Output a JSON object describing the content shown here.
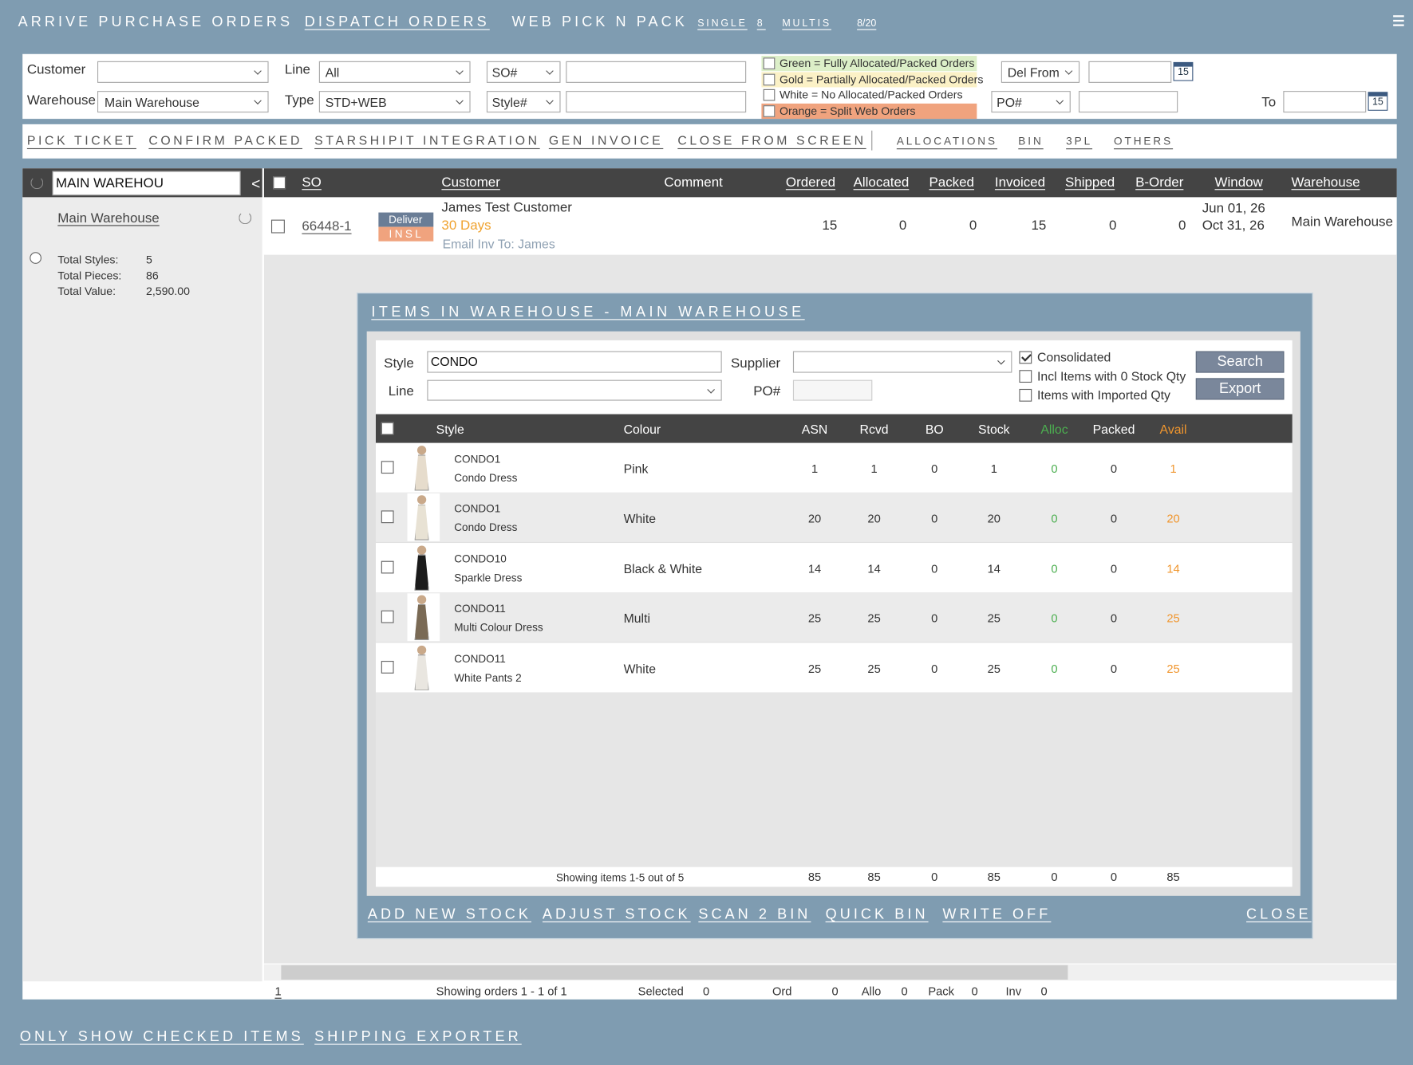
{
  "top_nav": {
    "links": [
      "ARRIVE PURCHASE ORDERS",
      "DISPATCH ORDERS",
      "WEB PICK N PACK"
    ],
    "single": {
      "label": "SINGLE",
      "count": 8
    },
    "multis": {
      "label": "MULTIS",
      "count": "8/20"
    }
  },
  "filters": {
    "customer_label": "Customer",
    "warehouse_label": "Warehouse",
    "warehouse_value": "Main Warehouse",
    "line_label": "Line",
    "line_value": "All",
    "type_label": "Type",
    "type_value": "STD+WEB",
    "so_select": "SO#",
    "style_select": "Style#",
    "del_from_select": "Del From",
    "po_select": "PO#",
    "to_label": "To",
    "calendar_day": [
      "15",
      "15"
    ]
  },
  "legend": [
    {
      "text": "Green = Fully Allocated/Packed Orders",
      "color": "#dcefc8"
    },
    {
      "text": "Gold = Partially Allocated/Packed Orders",
      "color": "#fbf1c6"
    },
    {
      "text": "White = No Allocated/Packed Orders",
      "color": "#ffffff"
    },
    {
      "text": "Orange = Split Web Orders",
      "color": "#f0a37e"
    }
  ],
  "actions": [
    "PICK TICKET",
    "CONFIRM PACKED",
    "STARSHIPIT INTEGRATION",
    "GEN INVOICE",
    "CLOSE FROM SCREEN"
  ],
  "secondary_actions": [
    "ALLOCATIONS",
    "BIN",
    "3PL",
    "OTHERS"
  ],
  "sidebar": {
    "search": "MAIN WAREHOU",
    "collapse": "<",
    "warehouse": "Main Warehouse",
    "stats": [
      {
        "label": "Total Styles:",
        "value": "5"
      },
      {
        "label": "Total Pieces:",
        "value": "86"
      },
      {
        "label": "Total Value:",
        "value": "2,590.00"
      }
    ]
  },
  "orders": {
    "columns": [
      "SO",
      "Customer",
      "Comment",
      "Ordered",
      "Allocated",
      "Packed",
      "Invoiced",
      "Shipped",
      "B-Order",
      "Window",
      "Warehouse"
    ],
    "rows": [
      {
        "so": "66448-1",
        "badge_top": "Deliver",
        "badge_bottom": "INSL",
        "customer": "James Test Customer",
        "terms": "30 Days",
        "email": "Email Inv To: James",
        "ordered": 15,
        "allocated": 0,
        "packed": 0,
        "invoiced": 15,
        "shipped": 0,
        "b_order": 0,
        "window": [
          "Jun 01, 26",
          "Oct 31, 26"
        ],
        "warehouse": "Main Warehouse"
      }
    ],
    "footer": {
      "page": "1",
      "showing": "Showing orders 1 - 1 of 1",
      "selected_label": "Selected",
      "selected": 0,
      "ord_label": "Ord",
      "ord": 0,
      "allo_label": "Allo",
      "allo": 0,
      "pack_label": "Pack",
      "pack": 0,
      "inv_label": "Inv",
      "inv": 0
    }
  },
  "modal": {
    "title": "ITEMS IN WAREHOUSE - MAIN WAREHOUSE",
    "style_label": "Style",
    "style_value": "CONDO",
    "line_label": "Line",
    "supplier_label": "Supplier",
    "po_label": "PO#",
    "options": [
      {
        "label": "Consolidated",
        "checked": true
      },
      {
        "label": "Incl Items with 0 Stock Qty",
        "checked": false
      },
      {
        "label": "Items with Imported Qty",
        "checked": false
      }
    ],
    "buttons": [
      "Search",
      "Export"
    ],
    "columns": [
      "Style",
      "Colour",
      "ASN",
      "Rcvd",
      "BO",
      "Stock",
      "Alloc",
      "Packed",
      "Avail"
    ],
    "items": [
      {
        "code": "CONDO1",
        "name": "Condo Dress",
        "colour": "Pink",
        "values": [
          1,
          1,
          0,
          1,
          0,
          0,
          1
        ]
      },
      {
        "code": "CONDO1",
        "name": "Condo Dress",
        "colour": "White",
        "values": [
          20,
          20,
          0,
          20,
          0,
          0,
          20
        ]
      },
      {
        "code": "CONDO10",
        "name": "Sparkle Dress",
        "colour": "Black & White",
        "values": [
          14,
          14,
          0,
          14,
          0,
          0,
          14
        ]
      },
      {
        "code": "CONDO11",
        "name": "Multi Colour Dress",
        "colour": "Multi",
        "values": [
          25,
          25,
          0,
          25,
          0,
          0,
          25
        ]
      },
      {
        "code": "CONDO11",
        "name": "White Pants 2",
        "colour": "White",
        "values": [
          25,
          25,
          0,
          25,
          0,
          0,
          25
        ]
      }
    ],
    "summary": "Showing items 1-5 out of 5",
    "totals": [
      85,
      85,
      0,
      85,
      0,
      0,
      85
    ],
    "actions": [
      "ADD NEW STOCK",
      "ADJUST STOCK",
      "SCAN 2 BIN",
      "QUICK BIN",
      "WRITE OFF"
    ],
    "close": "CLOSE"
  },
  "bottom_links": [
    "ONLY SHOW CHECKED ITEMS",
    "SHIPPING EXPORTER"
  ]
}
